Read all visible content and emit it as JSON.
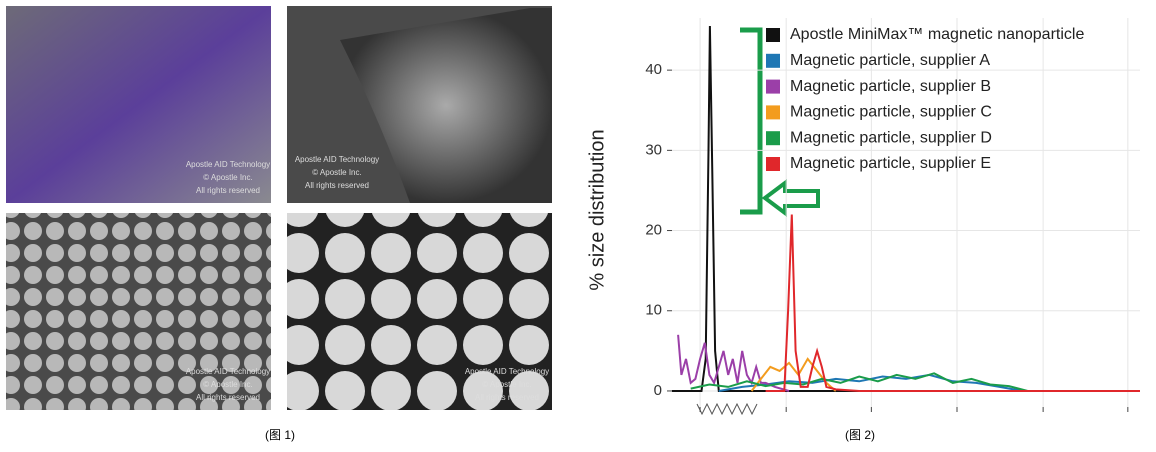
{
  "photos": [
    {
      "watermark": [
        "Apostle AID Technology",
        "© Apostle Inc.",
        "All rights reserved"
      ]
    },
    {
      "watermark": [
        "Apostle AID Technology",
        "© Apostle Inc.",
        "All rights reserved"
      ]
    },
    {
      "watermark": [
        "Apostle AID Technology",
        "© Apostle Inc.",
        "All rights reserved"
      ]
    },
    {
      "watermark": [
        "Apostle AID Technology",
        "© Apostle Inc.",
        "All rights reserved"
      ]
    }
  ],
  "captions": [
    "(图 1)",
    "(图 2)"
  ],
  "chart_data": {
    "type": "line",
    "y_label": "% size distribution",
    "xlim": [
      0,
      100
    ],
    "xticks": [
      6,
      24.4,
      42.6,
      60.9,
      79.3,
      97.4
    ],
    "ylim": [
      -2,
      46.5
    ],
    "yticks": [
      0,
      10,
      20,
      30,
      40
    ],
    "grid": true,
    "legend": "top-right",
    "series": [
      {
        "name": "Apostle MiniMax™ magnetic nanoparticle",
        "color": "#111111",
        "x": [
          0,
          6.3,
          7.2,
          7.8,
          8.1,
          8.6,
          9.2,
          10,
          30,
          100
        ],
        "values": [
          0,
          0,
          4,
          30,
          45.5,
          28,
          5,
          0,
          0,
          0
        ]
      },
      {
        "name": "Magnetic particle, supplier A",
        "color": "#1f77b4",
        "x": [
          10,
          15,
          20,
          25,
          30,
          35,
          40,
          45,
          50,
          55,
          60,
          65,
          70,
          75
        ],
        "values": [
          0,
          0.5,
          0.8,
          1.2,
          1,
          1.5,
          1.2,
          1.8,
          1.5,
          2,
          1.2,
          1,
          0.5,
          0
        ]
      },
      {
        "name": "Magnetic particle, supplier B",
        "color": "#9b3fa8",
        "x": [
          1.3,
          2,
          3,
          4,
          5,
          6,
          7,
          8,
          9,
          10,
          11,
          12,
          13,
          14,
          15,
          16,
          17,
          18,
          19,
          20,
          22,
          25
        ],
        "values": [
          7,
          2,
          4,
          1,
          1.5,
          4,
          6,
          2,
          1,
          3,
          5,
          2,
          4,
          1,
          5,
          2,
          1,
          3,
          1,
          1,
          0.5,
          0
        ]
      },
      {
        "name": "Magnetic particle, supplier C",
        "color": "#f39c1e",
        "x": [
          17,
          19,
          21,
          23,
          25,
          27,
          29,
          31,
          33,
          35
        ],
        "values": [
          0,
          1.5,
          3,
          2.5,
          3.5,
          2,
          4,
          2.5,
          1,
          0
        ]
      },
      {
        "name": "Magnetic particle, supplier D",
        "color": "#1a9c4a",
        "x": [
          4,
          8,
          12,
          16,
          20,
          24,
          28,
          32,
          36,
          40,
          44,
          48,
          52,
          56,
          60,
          64,
          68,
          72,
          76
        ],
        "values": [
          0.3,
          0.8,
          0.5,
          1.2,
          0.6,
          1,
          0.8,
          1.5,
          1,
          1.8,
          1.2,
          2,
          1.5,
          2.2,
          1,
          1.5,
          0.8,
          0.6,
          0
        ]
      },
      {
        "name": "Magnetic particle, supplier E",
        "color": "#e0272b",
        "x": [
          20,
          24,
          24.8,
          25.6,
          26.4,
          27.5,
          29,
          30,
          31,
          32,
          33,
          35,
          40,
          60,
          100
        ],
        "values": [
          0,
          0,
          10,
          22,
          5,
          0.5,
          0.5,
          3,
          5,
          3,
          0.5,
          0.2,
          0,
          0,
          0
        ]
      }
    ]
  }
}
